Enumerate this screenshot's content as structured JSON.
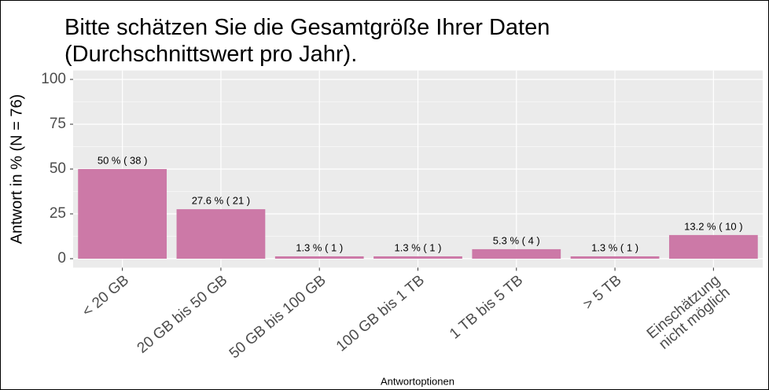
{
  "chart_data": {
    "type": "bar",
    "title": "Bitte schätzen Sie die Gesamtgröße Ihrer Daten\n(Durchschnittswert pro Jahr).",
    "y_label": "Antwort in % (N = 76)",
    "x_label": "Antwortoptionen",
    "categories": [
      "< 20 GB",
      "20 GB bis 50 GB",
      "50 GB bis 100 GB",
      "100 GB bis 1 TB",
      "1 TB bis 5 TB",
      "> 5 TB",
      "Einschätzung\nnicht möglich"
    ],
    "values": [
      50,
      27.6,
      1.3,
      1.3,
      5.3,
      1.3,
      13.2
    ],
    "value_labels": [
      "50 % ( 38 )",
      "27.6 % ( 21 )",
      "1.3 % ( 1 )",
      "1.3 % ( 1 )",
      "5.3 % ( 4 )",
      "1.3 % ( 1 )",
      "13.2 % ( 10 )"
    ],
    "color": "#cc79a7",
    "ylim": [
      -5,
      105
    ],
    "yticks": [
      0,
      25,
      50,
      75,
      100
    ],
    "grid": true
  }
}
